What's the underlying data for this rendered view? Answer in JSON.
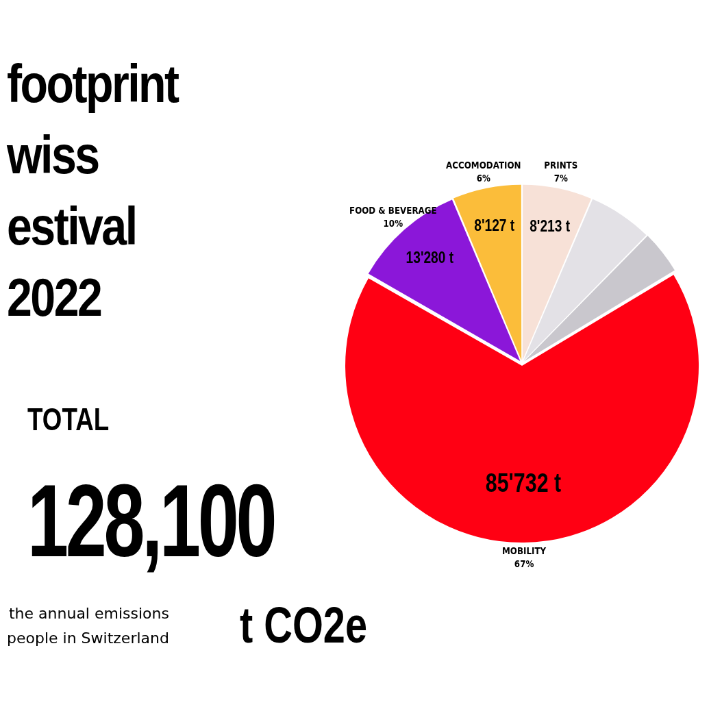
{
  "chart_data": {
    "type": "pie",
    "title": "footprint\nwiss\nestival\n2022",
    "categories": [
      "PRINTS",
      null,
      null,
      "MOBILITY",
      "FOOD & BEVERAGE",
      "ACCOMODATION"
    ],
    "values": [
      8213,
      7600,
      5148,
      85732,
      13280,
      8127
    ],
    "colors": [
      "#f7e1d7",
      "#e3e1e6",
      "#c9c7cd",
      "#ff0013",
      "#8b17d9",
      "#fbbd3a"
    ],
    "value_labels": [
      "8'213 t",
      null,
      null,
      "85'732 t",
      "13'280 t",
      "8'127 t"
    ],
    "annotations": [
      {
        "text": "7%",
        "x": "PRINTS"
      },
      {
        "text": "67%",
        "x": "MOBILITY"
      },
      {
        "text": "10%",
        "x": "FOOD & BEVERAGE"
      },
      {
        "text": "6%",
        "x": "ACCOMODATION"
      },
      "TOTAL",
      "128,100",
      "t CO2e",
      "the annual emissions\npeople in Switzerland"
    ],
    "legend": false
  }
}
